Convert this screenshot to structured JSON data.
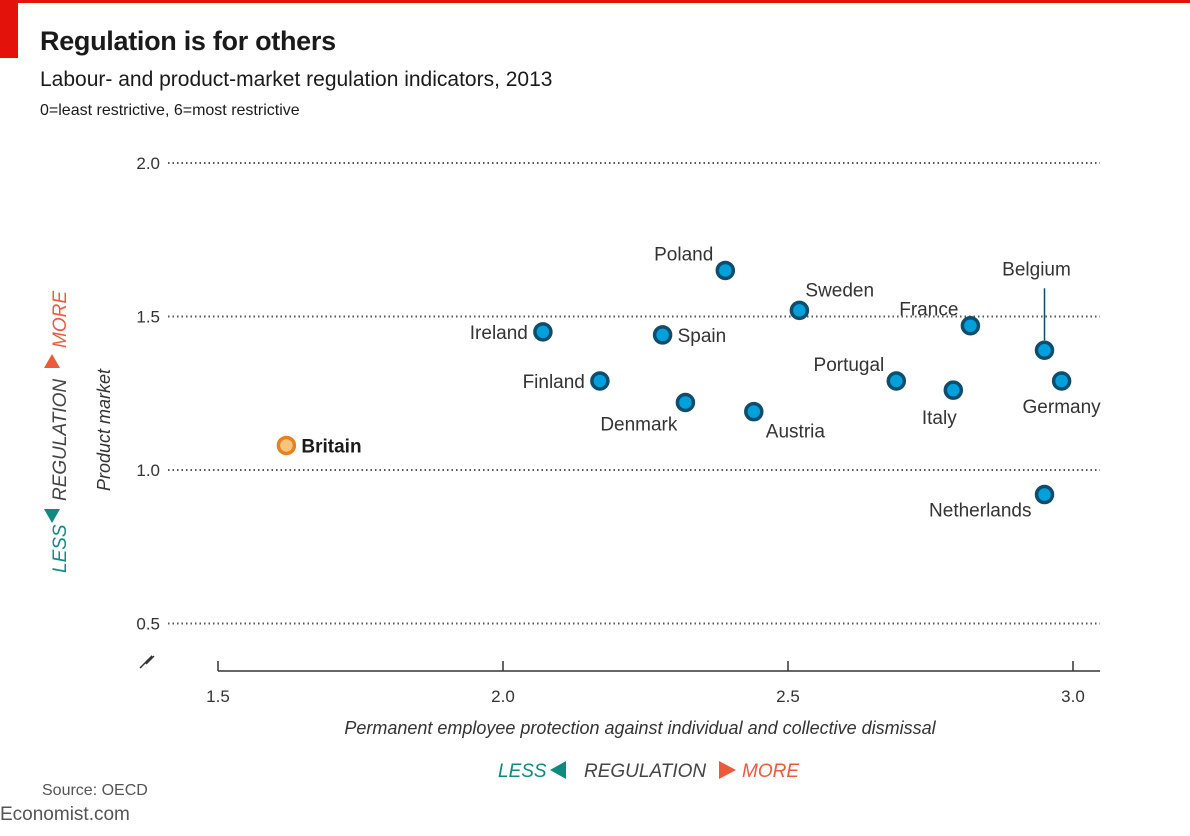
{
  "header": {
    "title": "Regulation is for others",
    "subtitle": "Labour- and product-market regulation indicators, 2013",
    "note": "0=least restrictive, 6=most restrictive"
  },
  "footer": {
    "source": "Source: OECD",
    "brand": "Economist.com"
  },
  "colors": {
    "accent_red": "#e3120b",
    "point_fill": "#00a0dc",
    "point_stroke": "#0e4d6b",
    "highlight_fill": "#f9c37a",
    "highlight_stroke": "#e8821e",
    "less_color": "#0f8a80",
    "more_color": "#ec5a3c"
  },
  "regulation_legend": {
    "less": "LESS",
    "word": "REGULATION",
    "more": "MORE"
  },
  "chart_data": {
    "type": "scatter",
    "title": "Regulation is for others",
    "subtitle": "Labour- and product-market regulation indicators, 2013",
    "xlabel": "Permanent employee protection against individual and collective dismissal",
    "ylabel": "Product market",
    "xlim": [
      1.5,
      3.05
    ],
    "ylim": [
      0.5,
      2.0
    ],
    "xticks": [
      "1.5",
      "2.0",
      "2.5",
      "3.0"
    ],
    "yticks": [
      "2.0",
      "1.5",
      "1.0",
      "0.5"
    ],
    "grid": "horizontal dotted",
    "axis_break": "y",
    "points": [
      {
        "name": "Britain",
        "x": 1.62,
        "y": 1.08,
        "highlight": true,
        "label_pos": "right"
      },
      {
        "name": "Ireland",
        "x": 2.07,
        "y": 1.45,
        "label_pos": "left"
      },
      {
        "name": "Finland",
        "x": 2.17,
        "y": 1.29,
        "label_pos": "left"
      },
      {
        "name": "Spain",
        "x": 2.28,
        "y": 1.44,
        "label_pos": "right"
      },
      {
        "name": "Denmark",
        "x": 2.32,
        "y": 1.22,
        "label_pos": "below-left"
      },
      {
        "name": "Poland",
        "x": 2.39,
        "y": 1.65,
        "label_pos": "above-left"
      },
      {
        "name": "Austria",
        "x": 2.44,
        "y": 1.19,
        "label_pos": "below-right"
      },
      {
        "name": "Sweden",
        "x": 2.52,
        "y": 1.52,
        "label_pos": "above-right"
      },
      {
        "name": "Portugal",
        "x": 2.69,
        "y": 1.29,
        "label_pos": "above-left"
      },
      {
        "name": "Italy",
        "x": 2.79,
        "y": 1.26,
        "label_pos": "below"
      },
      {
        "name": "France",
        "x": 2.82,
        "y": 1.47,
        "label_pos": "above-left"
      },
      {
        "name": "Belgium",
        "x": 2.95,
        "y": 1.39,
        "label_pos": "leader-above"
      },
      {
        "name": "Germany",
        "x": 2.98,
        "y": 1.29,
        "label_pos": "below"
      },
      {
        "name": "Netherlands",
        "x": 2.95,
        "y": 0.92,
        "label_pos": "below-left"
      }
    ]
  }
}
